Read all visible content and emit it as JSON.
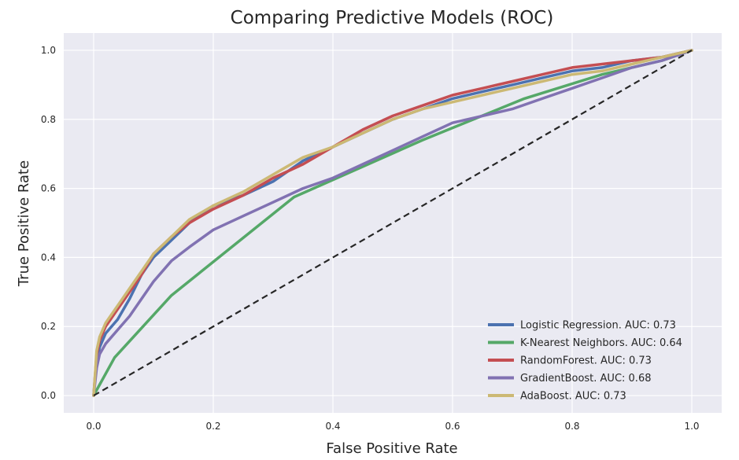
{
  "chart_data": {
    "type": "line",
    "title": "Comparing Predictive Models (ROC)",
    "xlabel": "False Positive Rate",
    "ylabel": "True Positive Rate",
    "xlim": [
      -0.05,
      1.05
    ],
    "ylim": [
      -0.05,
      1.05
    ],
    "xticks": [
      "0.0",
      "0.2",
      "0.4",
      "0.6",
      "0.8",
      "1.0"
    ],
    "yticks": [
      "0.0",
      "0.2",
      "0.4",
      "0.6",
      "0.8",
      "1.0"
    ],
    "grid": true,
    "legend_position": "lower-right",
    "background_color": "#eaeaf2",
    "grid_color": "#ffffff",
    "series": [
      {
        "name": "Logistic Regression.  AUC: 0.73",
        "color": "#4c72b0",
        "x": [
          0.0,
          0.005,
          0.01,
          0.02,
          0.04,
          0.06,
          0.08,
          0.1,
          0.13,
          0.16,
          0.2,
          0.25,
          0.3,
          0.35,
          0.4,
          0.45,
          0.5,
          0.55,
          0.6,
          0.65,
          0.7,
          0.75,
          0.8,
          0.85,
          0.9,
          0.95,
          1.0
        ],
        "y": [
          0.0,
          0.1,
          0.14,
          0.18,
          0.22,
          0.28,
          0.35,
          0.4,
          0.45,
          0.5,
          0.55,
          0.58,
          0.62,
          0.68,
          0.72,
          0.76,
          0.8,
          0.83,
          0.86,
          0.88,
          0.9,
          0.92,
          0.94,
          0.95,
          0.97,
          0.98,
          1.0
        ]
      },
      {
        "name": "K-Nearest Neighbors.  AUC: 0.64",
        "color": "#55a868",
        "x": [
          0.0,
          0.035,
          0.13,
          0.335,
          0.55,
          0.72,
          0.85,
          0.95,
          1.0
        ],
        "y": [
          0.0,
          0.11,
          0.29,
          0.575,
          0.74,
          0.86,
          0.93,
          0.97,
          1.0
        ]
      },
      {
        "name": "RandomForest.  AUC: 0.73",
        "color": "#c44e52",
        "x": [
          0.0,
          0.005,
          0.01,
          0.02,
          0.04,
          0.06,
          0.08,
          0.1,
          0.13,
          0.16,
          0.2,
          0.25,
          0.3,
          0.35,
          0.4,
          0.45,
          0.5,
          0.55,
          0.6,
          0.65,
          0.7,
          0.75,
          0.8,
          0.85,
          0.9,
          0.95,
          1.0
        ],
        "y": [
          0.0,
          0.12,
          0.16,
          0.2,
          0.25,
          0.3,
          0.35,
          0.41,
          0.46,
          0.5,
          0.54,
          0.58,
          0.63,
          0.67,
          0.72,
          0.77,
          0.81,
          0.84,
          0.87,
          0.89,
          0.91,
          0.93,
          0.95,
          0.96,
          0.97,
          0.98,
          1.0
        ]
      },
      {
        "name": "GradientBoost.  AUC: 0.68",
        "color": "#8172b2",
        "x": [
          0.0,
          0.005,
          0.01,
          0.02,
          0.04,
          0.06,
          0.08,
          0.1,
          0.13,
          0.16,
          0.2,
          0.25,
          0.3,
          0.35,
          0.4,
          0.45,
          0.5,
          0.55,
          0.6,
          0.65,
          0.7,
          0.75,
          0.8,
          0.85,
          0.9,
          0.95,
          1.0
        ],
        "y": [
          0.0,
          0.08,
          0.12,
          0.15,
          0.19,
          0.23,
          0.28,
          0.33,
          0.39,
          0.43,
          0.48,
          0.52,
          0.56,
          0.6,
          0.63,
          0.67,
          0.71,
          0.75,
          0.79,
          0.81,
          0.83,
          0.86,
          0.89,
          0.92,
          0.95,
          0.97,
          1.0
        ]
      },
      {
        "name": "AdaBoost.  AUC: 0.73",
        "color": "#ccb974",
        "x": [
          0.0,
          0.005,
          0.01,
          0.02,
          0.04,
          0.06,
          0.08,
          0.1,
          0.13,
          0.16,
          0.2,
          0.25,
          0.3,
          0.35,
          0.4,
          0.45,
          0.5,
          0.55,
          0.6,
          0.65,
          0.7,
          0.75,
          0.8,
          0.85,
          0.9,
          0.95,
          1.0
        ],
        "y": [
          0.0,
          0.13,
          0.17,
          0.21,
          0.26,
          0.31,
          0.36,
          0.41,
          0.46,
          0.51,
          0.55,
          0.59,
          0.64,
          0.69,
          0.72,
          0.76,
          0.8,
          0.83,
          0.85,
          0.87,
          0.89,
          0.91,
          0.93,
          0.94,
          0.96,
          0.98,
          1.0
        ]
      }
    ],
    "reference_line": {
      "x": [
        0.0,
        1.0
      ],
      "y": [
        0.0,
        1.0
      ],
      "color": "#262626",
      "style": "dashed"
    }
  }
}
